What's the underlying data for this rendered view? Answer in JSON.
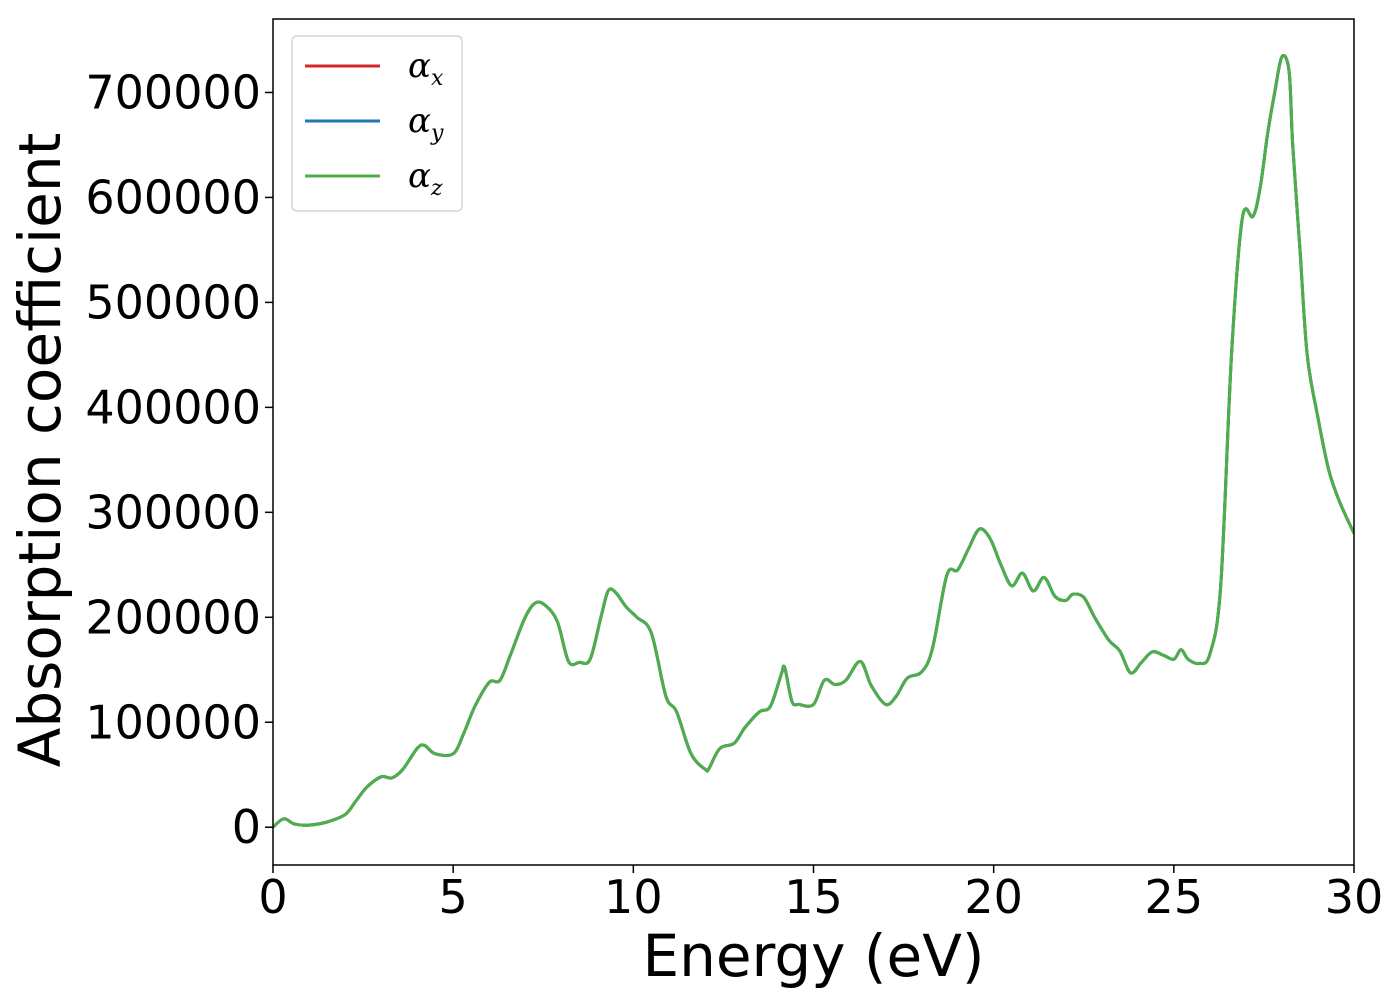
{
  "chart_data": {
    "type": "line",
    "xlabel": "Energy (eV)",
    "ylabel": "Absorption coefficient",
    "xlim": [
      0,
      30
    ],
    "ylim": [
      -36000,
      770000
    ],
    "xticks": [
      0,
      5,
      10,
      15,
      20,
      25,
      30
    ],
    "xtick_labels": [
      "0",
      "5",
      "10",
      "15",
      "20",
      "25",
      "30"
    ],
    "yticks": [
      0,
      100000,
      200000,
      300000,
      400000,
      500000,
      600000,
      700000
    ],
    "ytick_labels": [
      "0",
      "100000",
      "200000",
      "300000",
      "400000",
      "500000",
      "600000",
      "700000"
    ],
    "grid": false,
    "legend_position": "top-left",
    "x": [
      0,
      0.3,
      0.6,
      1.0,
      1.5,
      2.0,
      2.3,
      2.6,
      3.0,
      3.3,
      3.6,
      4.0,
      4.2,
      4.5,
      5.0,
      5.3,
      5.6,
      6.0,
      6.3,
      6.6,
      7.0,
      7.3,
      7.6,
      7.9,
      8.2,
      8.5,
      8.8,
      9.1,
      9.3,
      9.5,
      9.8,
      10.1,
      10.5,
      10.9,
      11.2,
      11.6,
      12.0,
      12.1,
      12.4,
      12.8,
      13.1,
      13.5,
      13.8,
      14.1,
      14.2,
      14.4,
      14.6,
      15.0,
      15.3,
      15.6,
      15.9,
      16.3,
      16.6,
      17.0,
      17.3,
      17.6,
      18.0,
      18.3,
      18.7,
      19.0,
      19.3,
      19.6,
      19.9,
      20.2,
      20.5,
      20.8,
      21.1,
      21.4,
      21.7,
      22.0,
      22.2,
      22.5,
      22.8,
      23.2,
      23.5,
      23.8,
      24.1,
      24.4,
      24.7,
      25.0,
      25.2,
      25.4,
      25.7,
      26.0,
      26.3,
      26.6,
      26.9,
      27.2,
      27.4,
      27.6,
      27.8,
      28.0,
      28.2,
      28.3,
      28.5,
      28.7,
      29.0,
      29.3,
      29.6,
      30.0
    ],
    "series": [
      {
        "name": "α_x",
        "label_symbol": "α",
        "label_sub": "x",
        "color": "#d62728",
        "values": [
          0,
          8000,
          3000,
          2000,
          5000,
          12000,
          25000,
          38000,
          48000,
          47000,
          55000,
          75000,
          78000,
          70000,
          70000,
          90000,
          115000,
          138000,
          140000,
          165000,
          200000,
          214000,
          210000,
          195000,
          158000,
          157000,
          160000,
          200000,
          225000,
          224000,
          210000,
          200000,
          185000,
          125000,
          110000,
          70000,
          55000,
          56000,
          75000,
          80000,
          95000,
          110000,
          115000,
          145000,
          152000,
          120000,
          117000,
          117000,
          140000,
          136000,
          140000,
          158000,
          135000,
          117000,
          125000,
          142000,
          148000,
          170000,
          240000,
          245000,
          265000,
          284000,
          275000,
          250000,
          230000,
          242000,
          225000,
          238000,
          220000,
          216000,
          222000,
          219000,
          200000,
          178000,
          168000,
          147000,
          157000,
          167000,
          164000,
          160000,
          169000,
          160000,
          156000,
          165000,
          230000,
          450000,
          580000,
          582000,
          610000,
          660000,
          700000,
          734000,
          720000,
          650000,
          550000,
          450000,
          390000,
          340000,
          310000,
          280000
        ]
      },
      {
        "name": "α_y",
        "label_symbol": "α",
        "label_sub": "y",
        "color": "#1f77b4",
        "values": [
          0,
          8000,
          3000,
          2000,
          5000,
          12000,
          25000,
          38000,
          48000,
          47000,
          55000,
          75000,
          78000,
          70000,
          70000,
          90000,
          115000,
          138000,
          140000,
          165000,
          200000,
          214000,
          210000,
          195000,
          158000,
          157000,
          160000,
          200000,
          225000,
          224000,
          210000,
          200000,
          185000,
          125000,
          110000,
          70000,
          55000,
          56000,
          75000,
          80000,
          95000,
          110000,
          115000,
          145000,
          152000,
          120000,
          117000,
          117000,
          140000,
          136000,
          140000,
          158000,
          135000,
          117000,
          125000,
          142000,
          148000,
          170000,
          240000,
          245000,
          265000,
          284000,
          275000,
          250000,
          230000,
          242000,
          225000,
          238000,
          220000,
          216000,
          222000,
          219000,
          200000,
          178000,
          168000,
          147000,
          157000,
          167000,
          164000,
          160000,
          169000,
          160000,
          156000,
          165000,
          230000,
          450000,
          580000,
          582000,
          610000,
          660000,
          700000,
          734000,
          720000,
          650000,
          550000,
          450000,
          390000,
          340000,
          310000,
          280000
        ]
      },
      {
        "name": "α_z",
        "label_symbol": "α",
        "label_sub": "z",
        "color": "#4daf4a",
        "values": [
          0,
          8000,
          3000,
          2000,
          5000,
          12000,
          25000,
          38000,
          48000,
          47000,
          55000,
          75000,
          78000,
          70000,
          70000,
          90000,
          115000,
          138000,
          140000,
          165000,
          200000,
          214000,
          210000,
          195000,
          158000,
          157000,
          160000,
          200000,
          225000,
          224000,
          210000,
          200000,
          185000,
          125000,
          110000,
          70000,
          55000,
          56000,
          75000,
          80000,
          95000,
          110000,
          115000,
          145000,
          152000,
          120000,
          117000,
          117000,
          140000,
          136000,
          140000,
          158000,
          135000,
          117000,
          125000,
          142000,
          148000,
          170000,
          240000,
          245000,
          265000,
          284000,
          275000,
          250000,
          230000,
          242000,
          225000,
          238000,
          220000,
          216000,
          222000,
          219000,
          200000,
          178000,
          168000,
          147000,
          157000,
          167000,
          164000,
          160000,
          169000,
          160000,
          156000,
          165000,
          230000,
          450000,
          580000,
          582000,
          610000,
          660000,
          700000,
          734000,
          720000,
          650000,
          550000,
          450000,
          390000,
          340000,
          310000,
          280000
        ]
      }
    ]
  }
}
